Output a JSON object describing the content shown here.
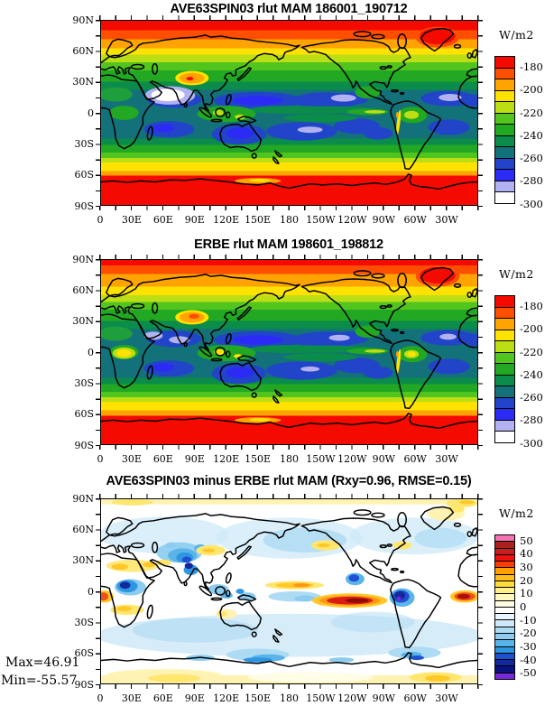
{
  "figure": {
    "panels": [
      {
        "id": "model",
        "title": "AVE63SPIN03 rlut MAM 186001_190712",
        "x_tick_labels": [
          "0",
          "30E",
          "60E",
          "90E",
          "120E",
          "150E",
          "180",
          "150W",
          "120W",
          "90W",
          "60W",
          "30W"
        ],
        "y_tick_labels": [
          "90N",
          "60N",
          "30N",
          "0",
          "30S",
          "60S",
          "90S"
        ],
        "colorbar": {
          "unit_label": "W/m2",
          "tick_labels": [
            "-180",
            "-200",
            "-220",
            "-240",
            "-260",
            "-280",
            "-300"
          ],
          "colors": [
            "#F50A00",
            "#FE4F00",
            "#FFA300",
            "#FFE200",
            "#BCDE14",
            "#52C41E",
            "#22A822",
            "#0B8C4B",
            "#13717A",
            "#2144C8",
            "#2B2BF5",
            "#B2B2F2",
            "#FFFFFF"
          ]
        }
      },
      {
        "id": "obs",
        "title": "ERBE rlut MAM 198601_198812",
        "x_tick_labels": [
          "0",
          "30E",
          "60E",
          "90E",
          "120E",
          "150E",
          "180",
          "150W",
          "120W",
          "90W",
          "60W",
          "30W"
        ],
        "y_tick_labels": [
          "90N",
          "60N",
          "30N",
          "0",
          "30S",
          "60S",
          "90S"
        ],
        "colorbar": {
          "unit_label": "W/m2",
          "tick_labels": [
            "-180",
            "-200",
            "-220",
            "-240",
            "-260",
            "-280",
            "-300"
          ],
          "colors": [
            "#F50A00",
            "#FE4F00",
            "#FFA300",
            "#FFE200",
            "#BCDE14",
            "#52C41E",
            "#22A822",
            "#0B8C4B",
            "#13717A",
            "#2144C8",
            "#2B2BF5",
            "#B2B2F2",
            "#FFFFFF"
          ]
        }
      },
      {
        "id": "diff",
        "title": "AVE63SPIN03 minus ERBE rlut MAM (Rxy=0.96, RMSE=0.15)",
        "x_tick_labels": [
          "0",
          "30E",
          "60E",
          "90E",
          "120E",
          "150E",
          "180",
          "150W",
          "120W",
          "90W",
          "60W",
          "30W"
        ],
        "y_tick_labels": [
          "90N",
          "60N",
          "30N",
          "0",
          "30S",
          "60S",
          "90S"
        ],
        "colorbar": {
          "unit_label": "W/m2",
          "tick_labels": [
            "50",
            "40",
            "30",
            "20",
            "10",
            "0",
            "-10",
            "-20",
            "-30",
            "-40",
            "-50"
          ],
          "colors": [
            "#F473B0",
            "#A82222",
            "#C81E1E",
            "#F01010",
            "#FA3C00",
            "#FFA000",
            "#FFBE1E",
            "#FFDC3C",
            "#FFF08C",
            "#FFF8BE",
            "#FFFDE6",
            "#FFFFFF",
            "#EAF5FD",
            "#CFE9F8",
            "#ADDBF4",
            "#8CCCF0",
            "#5AB4E8",
            "#2E96E0",
            "#1E50D2",
            "#14289E",
            "#0A1280",
            "#7828DC"
          ]
        }
      }
    ],
    "annotations": {
      "max_label": "Max=46.91",
      "min_label": "Min=-55.57"
    },
    "stats": {
      "rxy": 0.96,
      "rmse": 0.15,
      "field_max": 46.91,
      "field_min": -55.57
    }
  },
  "chart_data": [
    {
      "type": "heatmap",
      "subtype": "filled-contour global lat-lon map",
      "title": "AVE63SPIN03 rlut MAM 186001_190712",
      "units": "W/m2",
      "x_ticks": [
        "0",
        "30E",
        "60E",
        "90E",
        "120E",
        "150E",
        "180",
        "150W",
        "120W",
        "90W",
        "60W",
        "30W"
      ],
      "y_ticks": [
        "90N",
        "60N",
        "30N",
        "0",
        "30S",
        "60S",
        "90S"
      ],
      "contour_levels": {
        "labeled": [
          -180,
          -200,
          -220,
          -240,
          -260,
          -280,
          -300
        ],
        "step": 10
      },
      "palette": [
        "#F50A00",
        "#FE4F00",
        "#FFA300",
        "#FFE200",
        "#BCDE14",
        "#52C41E",
        "#22A822",
        "#0B8C4B",
        "#13717A",
        "#2144C8",
        "#2B2BF5",
        "#B2B2F2",
        "#FFFFFF"
      ],
      "legend_position": "right",
      "approx_zonal_mean_estimated_from_colors": {
        "lat": [
          90,
          80,
          70,
          60,
          50,
          40,
          30,
          20,
          10,
          0,
          -10,
          -20,
          -30,
          -40,
          -50,
          -60,
          -70,
          -80,
          -90
        ],
        "rlut": [
          -172,
          -178,
          -192,
          -205,
          -218,
          -232,
          -245,
          -268,
          -258,
          -248,
          -255,
          -262,
          -240,
          -215,
          -198,
          -180,
          -172,
          -170,
          -170
        ]
      },
      "notable_features": [
        "Red (>-180) over Arctic, Greenland and Antarctica",
        "White/lavender minimum (<-290) over Arabia and India",
        "Deep blue subtropical ocean bands near 10-20N and 10-25S",
        "Green ITCZ band along the equator"
      ]
    },
    {
      "type": "heatmap",
      "subtype": "filled-contour global lat-lon map",
      "title": "ERBE rlut MAM 198601_198812",
      "units": "W/m2",
      "x_ticks": [
        "0",
        "30E",
        "60E",
        "90E",
        "120E",
        "150E",
        "180",
        "150W",
        "120W",
        "90W",
        "60W",
        "30W"
      ],
      "y_ticks": [
        "90N",
        "60N",
        "30N",
        "0",
        "30S",
        "60S",
        "90S"
      ],
      "contour_levels": {
        "labeled": [
          -180,
          -200,
          -220,
          -240,
          -260,
          -280,
          -300
        ],
        "step": 10
      },
      "palette": [
        "#F50A00",
        "#FE4F00",
        "#FFA300",
        "#FFE200",
        "#BCDE14",
        "#52C41E",
        "#22A822",
        "#0B8C4B",
        "#13717A",
        "#2144C8",
        "#2B2BF5",
        "#B2B2F2",
        "#FFFFFF"
      ],
      "legend_position": "right",
      "approx_zonal_mean_estimated_from_colors": {
        "lat": [
          90,
          80,
          70,
          60,
          50,
          40,
          30,
          20,
          10,
          0,
          -10,
          -20,
          -30,
          -40,
          -50,
          -60,
          -70,
          -80,
          -90
        ],
        "rlut": [
          -175,
          -182,
          -195,
          -208,
          -220,
          -232,
          -245,
          -265,
          -255,
          -245,
          -252,
          -260,
          -240,
          -215,
          -198,
          -182,
          -173,
          -171,
          -170
        ]
      },
      "notable_features": [
        "Wider orange band 60N-80N than model",
        "Lavender patches (-280 to -300) over Arabia, Indian Ocean, east Pacific and Atlantic",
        "Yellow convective minima over equatorial Africa and Indonesia",
        "Blue subtropical ocean bands; red Antarctica"
      ]
    },
    {
      "type": "heatmap",
      "subtype": "filled-contour global lat-lon difference map",
      "title": "AVE63SPIN03 minus ERBE rlut MAM (Rxy=0.96, RMSE=0.15)",
      "units": "W/m2",
      "stats": {
        "rxy": 0.96,
        "rmse": 0.15,
        "max": 46.91,
        "min": -55.57
      },
      "x_ticks": [
        "0",
        "30E",
        "60E",
        "90E",
        "120E",
        "150E",
        "180",
        "150W",
        "120W",
        "90W",
        "60W",
        "30W"
      ],
      "y_ticks": [
        "90N",
        "60N",
        "30N",
        "0",
        "30S",
        "60S",
        "90S"
      ],
      "contour_levels": {
        "labeled": [
          50,
          40,
          30,
          20,
          10,
          0,
          -10,
          -20,
          -30,
          -40,
          -50
        ],
        "step": 5
      },
      "palette": [
        "#F473B0",
        "#A82222",
        "#C81E1E",
        "#F01010",
        "#FA3C00",
        "#FFA000",
        "#FFBE1E",
        "#FFDC3C",
        "#FFF08C",
        "#FFF8BE",
        "#FFFDE6",
        "#FFFFFF",
        "#EAF5FD",
        "#CFE9F8",
        "#ADDBF4",
        "#8CCCF0",
        "#5AB4E8",
        "#2E96E0",
        "#1E50D2",
        "#14289E",
        "#0A1280",
        "#7828DC"
      ],
      "legend_position": "right",
      "approx_zonal_mean_estimated_from_colors": {
        "lat": [
          90,
          80,
          70,
          60,
          50,
          40,
          30,
          20,
          10,
          0,
          -10,
          -20,
          -30,
          -40,
          -50,
          -60,
          -70,
          -80,
          -90
        ],
        "difference": [
          4,
          3,
          -2,
          -3,
          -4,
          -4,
          -3,
          -2,
          2,
          0,
          -5,
          -6,
          -6,
          -7,
          -6,
          -4,
          2,
          6,
          8
        ]
      },
      "notable_features": [
        "Strong positive bias (30 to >45) over equatorial east Pacific and tropical Atlantic",
        "Strong negative bias (< -40, min -55.57) over Himalayas/central Asia and northwest South America",
        "Weak negative bias over midlatitude oceans",
        "Weak positive bias over deserts and Antarctica"
      ]
    }
  ]
}
